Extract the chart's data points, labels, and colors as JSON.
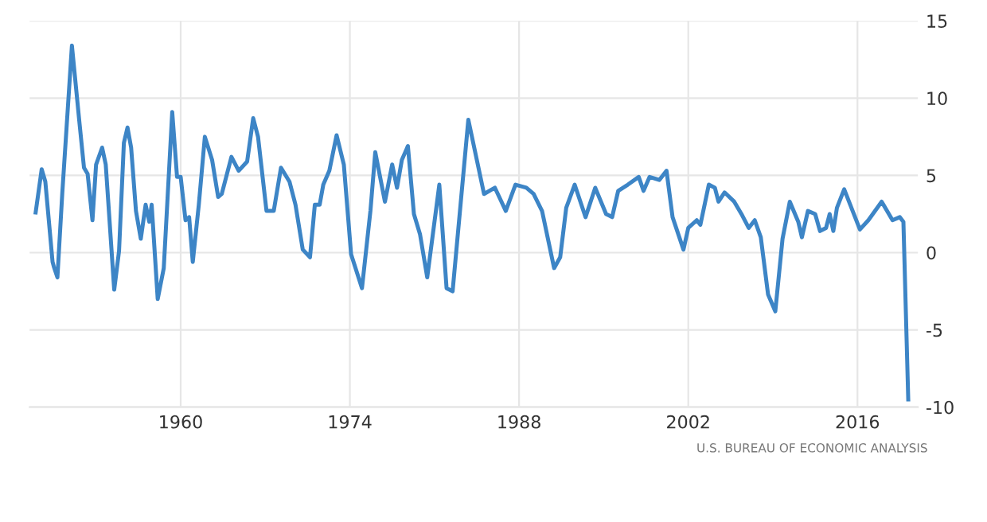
{
  "chart_data": {
    "type": "line",
    "annotations": [
      "U.S. BUREAU OF ECONOMIC ANALYSIS"
    ],
    "xlim": [
      1947.5,
      2021
    ],
    "xticks": [
      1960,
      1974,
      1988,
      2002,
      2016
    ],
    "ylim": [
      -10,
      15
    ],
    "yticks": [
      -10,
      -5,
      0,
      5,
      10,
      15
    ],
    "grid": true,
    "marker": "none",
    "line_style": "solid",
    "series": [
      {
        "color": "#3d85c6",
        "x": [
          1948.0,
          1948.5,
          1948.8,
          1949.4,
          1949.5,
          1949.8,
          1950.2,
          1951.0,
          1951.6,
          1952.0,
          1952.3,
          1952.7,
          1953.0,
          1953.5,
          1953.8,
          1954.5,
          1954.9,
          1955.3,
          1955.6,
          1955.9,
          1956.3,
          1956.7,
          1957.1,
          1957.4,
          1957.6,
          1958.1,
          1958.6,
          1959.3,
          1959.7,
          1960.0,
          1960.4,
          1960.7,
          1961.0,
          1961.5,
          1962.0,
          1962.6,
          1963.1,
          1963.4,
          1964.2,
          1964.8,
          1965.5,
          1966.0,
          1966.4,
          1967.1,
          1967.7,
          1968.3,
          1969.0,
          1969.5,
          1970.1,
          1970.7,
          1971.1,
          1971.5,
          1971.8,
          1972.3,
          1972.9,
          1973.5,
          1974.1,
          1975.0,
          1975.7,
          1976.1,
          1976.9,
          1977.5,
          1977.9,
          1978.3,
          1978.8,
          1979.3,
          1979.8,
          1980.4,
          1981.4,
          1982.0,
          1982.5,
          1983.8,
          1985.1,
          1986.0,
          1986.9,
          1987.7,
          1988.6,
          1989.2,
          1989.9,
          1990.9,
          1991.4,
          1991.9,
          1992.6,
          1993.5,
          1994.3,
          1995.2,
          1995.7,
          1996.2,
          1997.0,
          1997.9,
          1998.3,
          1998.8,
          1999.6,
          2000.2,
          2000.7,
          2001.6,
          2002.0,
          2002.7,
          2003.0,
          2003.7,
          2004.2,
          2004.5,
          2005.0,
          2005.8,
          2006.4,
          2007.0,
          2007.5,
          2008.0,
          2008.6,
          2009.2,
          2009.8,
          2010.4,
          2011.1,
          2011.4,
          2011.9,
          2012.5,
          2012.9,
          2013.4,
          2013.7,
          2014.0,
          2014.3,
          2014.9,
          2015.8,
          2016.2,
          2016.9,
          2018.0,
          2018.9,
          2019.5,
          2019.8,
          2020.2
        ],
        "values": [
          2.6,
          5.4,
          4.6,
          -0.6,
          -0.9,
          -1.6,
          3.8,
          13.4,
          8.6,
          5.5,
          5.1,
          2.1,
          5.7,
          6.8,
          5.7,
          -2.4,
          0.1,
          7.1,
          8.1,
          6.8,
          2.7,
          0.9,
          3.1,
          2.0,
          3.1,
          -3.0,
          -1.0,
          9.1,
          4.9,
          4.9,
          2.1,
          2.3,
          -0.6,
          3.1,
          7.5,
          6.0,
          3.6,
          3.8,
          6.2,
          5.3,
          5.9,
          8.7,
          7.5,
          2.7,
          2.7,
          5.5,
          4.6,
          3.1,
          0.2,
          -0.3,
          3.1,
          3.1,
          4.4,
          5.3,
          7.6,
          5.7,
          -0.1,
          -2.3,
          2.7,
          6.5,
          3.3,
          5.7,
          4.2,
          6.0,
          6.9,
          2.5,
          1.2,
          -1.6,
          4.4,
          -2.3,
          -2.5,
          8.6,
          3.8,
          4.2,
          2.7,
          4.4,
          4.2,
          3.8,
          2.7,
          -1.0,
          -0.3,
          2.9,
          4.4,
          2.3,
          4.2,
          2.5,
          2.3,
          4.0,
          4.4,
          4.9,
          4.0,
          4.9,
          4.7,
          5.3,
          2.3,
          0.2,
          1.6,
          2.1,
          1.8,
          4.4,
          4.2,
          3.3,
          3.9,
          3.3,
          2.5,
          1.6,
          2.1,
          1.0,
          -2.7,
          -3.8,
          0.9,
          3.3,
          2.0,
          1.0,
          2.7,
          2.5,
          1.4,
          1.6,
          2.5,
          1.4,
          2.9,
          4.1,
          2.3,
          1.5,
          2.1,
          3.3,
          2.1,
          2.3,
          2.0,
          -9.5
        ]
      }
    ]
  }
}
